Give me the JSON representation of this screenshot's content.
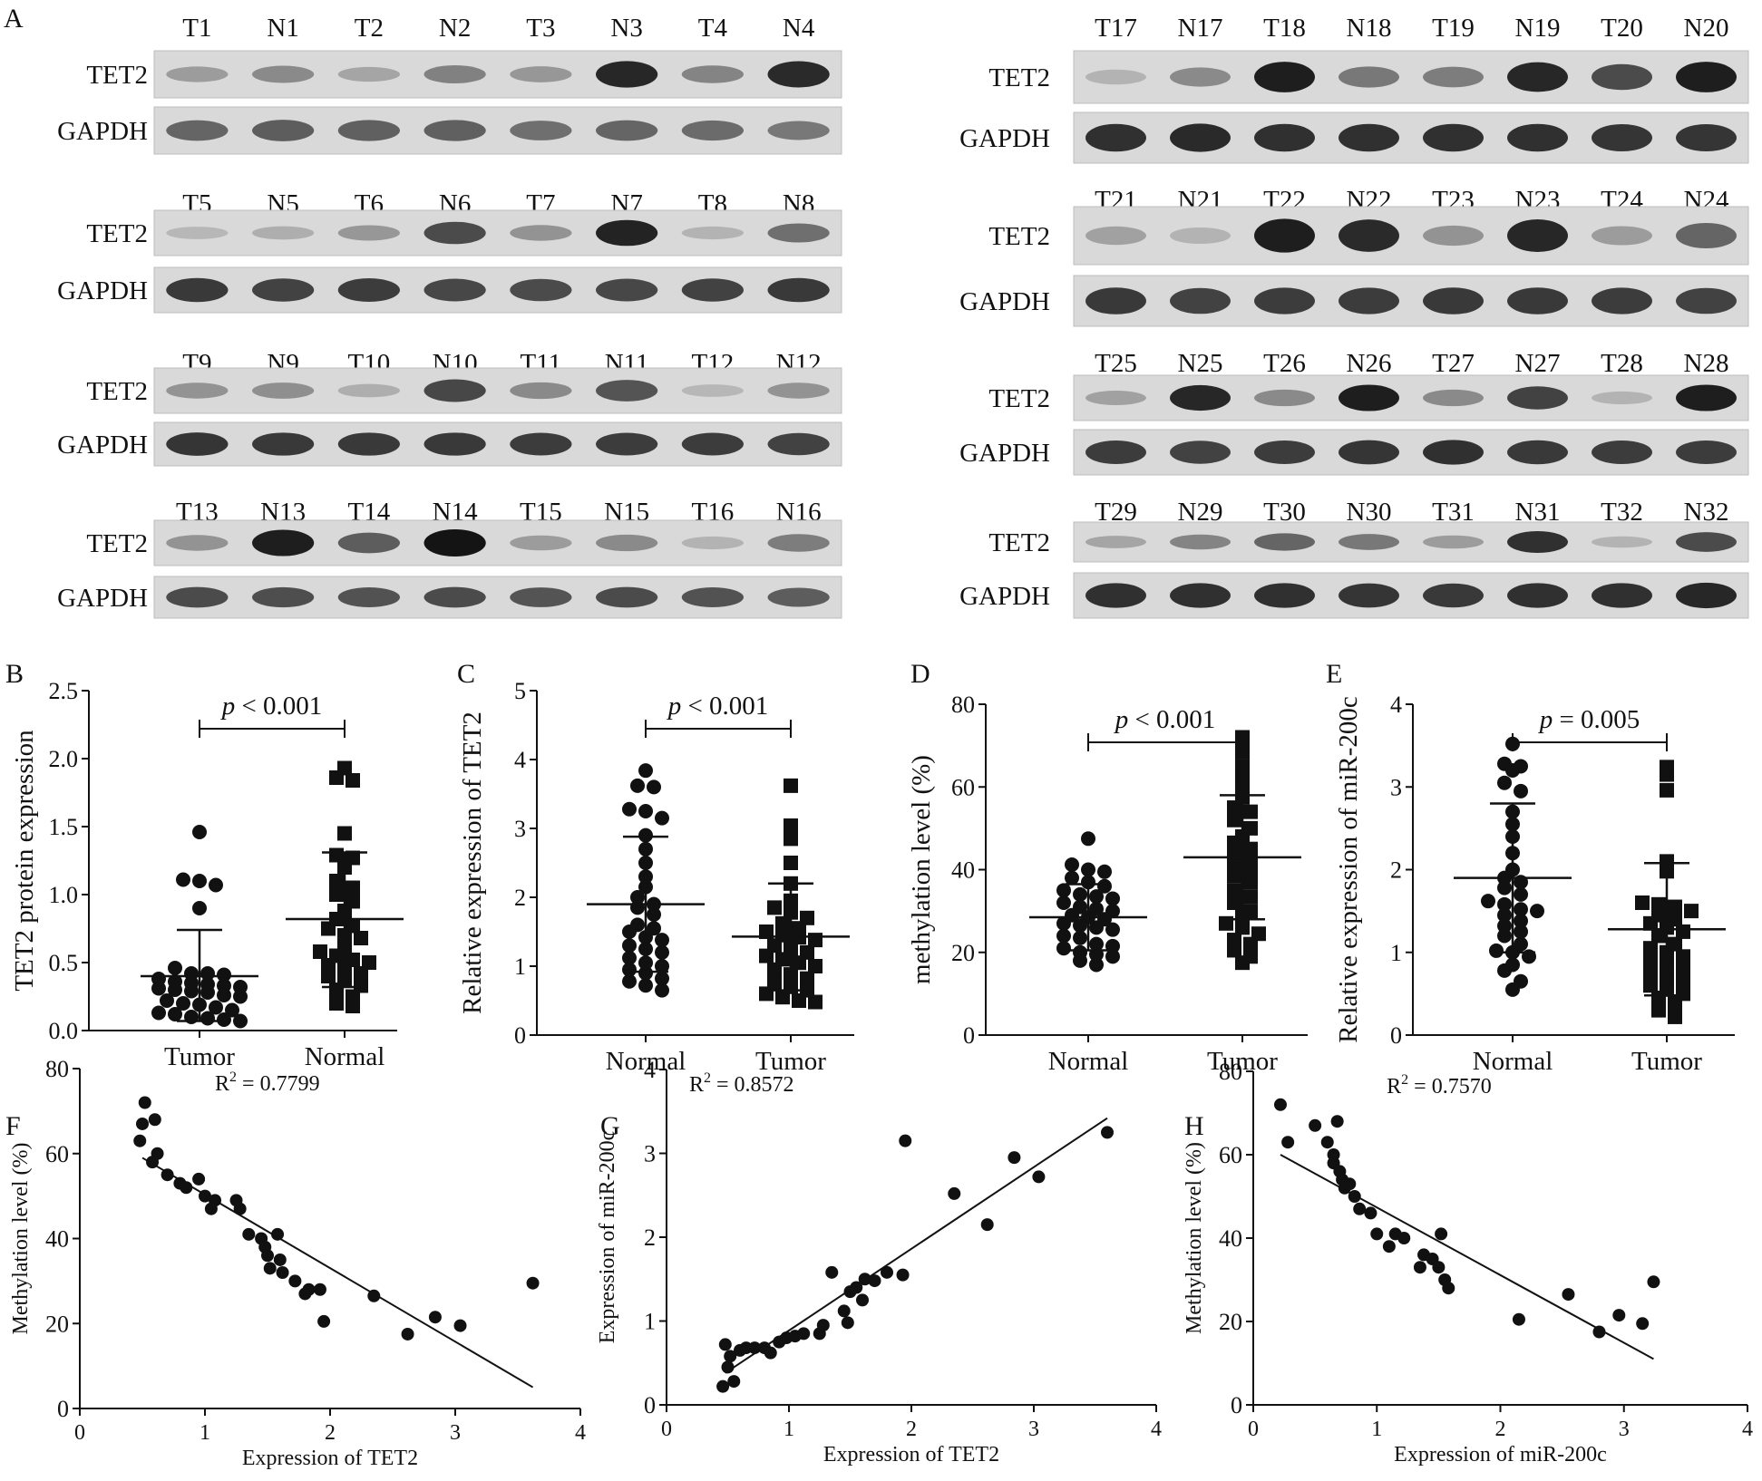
{
  "panel_letters": [
    "A",
    "B",
    "C",
    "D",
    "E",
    "F",
    "G",
    "H"
  ],
  "blot": {
    "protein_labels": [
      "TET2",
      "GAPDH"
    ],
    "blocks": [
      {
        "lanes": [
          "T1",
          "N1",
          "T2",
          "N2",
          "T3",
          "N3",
          "T4",
          "N4"
        ],
        "tet2": [
          0.25,
          0.35,
          0.2,
          0.4,
          0.28,
          0.9,
          0.38,
          0.88
        ],
        "gapdh": [
          0.55,
          0.6,
          0.58,
          0.58,
          0.5,
          0.55,
          0.52,
          0.45
        ]
      },
      {
        "lanes": [
          "T5",
          "N5",
          "T6",
          "N6",
          "T7",
          "N7",
          "T8",
          "N8"
        ],
        "tet2": [
          0.1,
          0.15,
          0.28,
          0.7,
          0.3,
          0.92,
          0.12,
          0.5
        ],
        "gapdh": [
          0.8,
          0.75,
          0.78,
          0.72,
          0.7,
          0.72,
          0.75,
          0.8
        ]
      },
      {
        "lanes": [
          "T9",
          "N9",
          "T10",
          "N10",
          "T11",
          "N11",
          "T12",
          "N12"
        ],
        "tet2": [
          0.3,
          0.32,
          0.15,
          0.72,
          0.35,
          0.65,
          0.1,
          0.3
        ],
        "gapdh": [
          0.82,
          0.8,
          0.8,
          0.8,
          0.78,
          0.78,
          0.78,
          0.75
        ]
      },
      {
        "lanes": [
          "T13",
          "N13",
          "T14",
          "N14",
          "T15",
          "N15",
          "T16",
          "N16"
        ],
        "tet2": [
          0.3,
          0.95,
          0.6,
          1.0,
          0.25,
          0.35,
          0.12,
          0.42
        ],
        "gapdh": [
          0.7,
          0.68,
          0.66,
          0.7,
          0.65,
          0.7,
          0.66,
          0.6
        ]
      },
      {
        "lanes": [
          "T17",
          "N17",
          "T18",
          "N18",
          "T19",
          "N19",
          "T20",
          "N20"
        ],
        "tet2": [
          0.12,
          0.35,
          0.95,
          0.45,
          0.42,
          0.9,
          0.7,
          0.95
        ],
        "gapdh": [
          0.85,
          0.88,
          0.85,
          0.85,
          0.85,
          0.85,
          0.82,
          0.82
        ]
      },
      {
        "lanes": [
          "T21",
          "N21",
          "T22",
          "N22",
          "T23",
          "N23",
          "T24",
          "N24"
        ],
        "tet2": [
          0.22,
          0.12,
          0.95,
          0.88,
          0.3,
          0.9,
          0.25,
          0.55
        ],
        "gapdh": [
          0.8,
          0.75,
          0.78,
          0.78,
          0.8,
          0.8,
          0.78,
          0.75
        ]
      },
      {
        "lanes": [
          "T25",
          "N25",
          "T26",
          "N26",
          "T27",
          "N27",
          "T28",
          "N28"
        ],
        "tet2": [
          0.22,
          0.9,
          0.35,
          0.95,
          0.35,
          0.75,
          0.12,
          0.95
        ],
        "gapdh": [
          0.78,
          0.75,
          0.78,
          0.82,
          0.85,
          0.8,
          0.78,
          0.78
        ]
      },
      {
        "lanes": [
          "T29",
          "N29",
          "T30",
          "N30",
          "T31",
          "N31",
          "T32",
          "N32"
        ],
        "tet2": [
          0.2,
          0.38,
          0.55,
          0.45,
          0.25,
          0.85,
          0.12,
          0.7
        ],
        "gapdh": [
          0.85,
          0.85,
          0.85,
          0.82,
          0.8,
          0.85,
          0.85,
          0.9
        ]
      }
    ]
  },
  "chart_data": [
    {
      "panel": "B",
      "type": "scatter",
      "ylabel": "TET2 protein expression",
      "categories": [
        "Tumor",
        "Normal"
      ],
      "ylim": [
        0,
        2.5
      ],
      "yticks": [
        "0.0",
        "0.5",
        "1.0",
        "1.5",
        "2.0",
        "2.5"
      ],
      "pvalue": "< 0.001",
      "significance_pair": [
        "Tumor",
        "Normal"
      ],
      "groups": [
        {
          "name": "Tumor",
          "marker": "circle",
          "mean": 0.4,
          "sd_low": 0.07,
          "sd_high": 0.74,
          "values": [
            1.46,
            1.11,
            1.1,
            1.07,
            0.9,
            0.46,
            0.42,
            0.42,
            0.41,
            0.38,
            0.36,
            0.35,
            0.34,
            0.33,
            0.32,
            0.31,
            0.3,
            0.29,
            0.28,
            0.26,
            0.25,
            0.22,
            0.2,
            0.19,
            0.17,
            0.15,
            0.13,
            0.12,
            0.1,
            0.09,
            0.08,
            0.07
          ]
        },
        {
          "name": "Normal",
          "marker": "square",
          "mean": 0.82,
          "sd_low": 0.32,
          "sd_high": 1.31,
          "values": [
            1.93,
            1.86,
            1.84,
            1.45,
            1.29,
            1.27,
            1.2,
            1.1,
            1.05,
            1.0,
            0.95,
            0.88,
            0.82,
            0.77,
            0.75,
            0.7,
            0.68,
            0.6,
            0.58,
            0.55,
            0.52,
            0.5,
            0.48,
            0.45,
            0.42,
            0.4,
            0.37,
            0.33,
            0.3,
            0.25,
            0.2,
            0.18
          ]
        }
      ]
    },
    {
      "panel": "C",
      "type": "scatter",
      "ylabel": "Relative expression of TET2",
      "categories": [
        "Normal",
        "Tumor"
      ],
      "ylim": [
        0,
        5
      ],
      "yticks": [
        "0",
        "1",
        "2",
        "3",
        "4",
        "5"
      ],
      "pvalue": "< 0.001",
      "significance_pair": [
        "Normal",
        "Tumor"
      ],
      "groups": [
        {
          "name": "Normal",
          "marker": "circle",
          "mean": 1.9,
          "sd_low": 0.92,
          "sd_high": 2.88,
          "values": [
            3.84,
            3.62,
            3.6,
            3.28,
            3.25,
            3.15,
            2.9,
            2.7,
            2.5,
            2.3,
            2.15,
            2.0,
            1.9,
            1.85,
            1.75,
            1.6,
            1.55,
            1.5,
            1.42,
            1.38,
            1.3,
            1.25,
            1.2,
            1.12,
            1.05,
            1.0,
            0.95,
            0.9,
            0.82,
            0.78,
            0.72,
            0.65
          ]
        },
        {
          "name": "Tumor",
          "marker": "square",
          "mean": 1.43,
          "sd_low": 0.65,
          "sd_high": 2.2,
          "values": [
            3.62,
            3.04,
            2.85,
            2.5,
            2.2,
            1.95,
            1.85,
            1.78,
            1.7,
            1.62,
            1.55,
            1.5,
            1.45,
            1.42,
            1.38,
            1.3,
            1.25,
            1.2,
            1.15,
            1.1,
            1.05,
            1.0,
            0.95,
            0.88,
            0.82,
            0.75,
            0.7,
            0.65,
            0.6,
            0.55,
            0.5,
            0.48
          ]
        }
      ]
    },
    {
      "panel": "D",
      "type": "scatter",
      "ylabel": "methylation level (%)",
      "categories": [
        "Normal",
        "Tumor"
      ],
      "ylim": [
        0,
        80
      ],
      "yticks": [
        "0",
        "20",
        "40",
        "60",
        "80"
      ],
      "pvalue": "< 0.001",
      "significance_pair": [
        "Normal",
        "Tumor"
      ],
      "groups": [
        {
          "name": "Normal",
          "marker": "circle",
          "mean": 28.5,
          "sd_low": 20.5,
          "sd_high": 36.5,
          "values": [
            47.5,
            41.2,
            40,
            39.5,
            38,
            37,
            36,
            35,
            34,
            33.5,
            33,
            32,
            31,
            30.5,
            30,
            29,
            28.5,
            28,
            27,
            26.5,
            26,
            25.5,
            24,
            23.5,
            22,
            21.5,
            21,
            20,
            19.5,
            19,
            18,
            17
          ]
        },
        {
          "name": "Tumor",
          "marker": "square",
          "mean": 43,
          "sd_low": 28,
          "sd_high": 58,
          "values": [
            72,
            68.5,
            65,
            63,
            60,
            57.5,
            55,
            54,
            52,
            50,
            48,
            46.5,
            45,
            43.5,
            42,
            41,
            40,
            38.5,
            37,
            35,
            33.5,
            32,
            30,
            29,
            27,
            26,
            24.5,
            23,
            22,
            20.5,
            19,
            17.5
          ]
        }
      ]
    },
    {
      "panel": "E",
      "type": "scatter",
      "ylabel": "Relative expression of miR-200c",
      "categories": [
        "Normal",
        "Tumor"
      ],
      "ylim": [
        0,
        4
      ],
      "yticks": [
        "0",
        "1",
        "2",
        "3",
        "4"
      ],
      "pvalue": "= 0.005",
      "significance_pair": [
        "Normal",
        "Tumor"
      ],
      "groups": [
        {
          "name": "Normal",
          "marker": "circle",
          "mean": 1.9,
          "sd_low": 1.0,
          "sd_high": 2.8,
          "values": [
            3.52,
            3.28,
            3.25,
            3.2,
            3.05,
            2.95,
            2.7,
            2.55,
            2.4,
            2.2,
            2.0,
            1.9,
            1.85,
            1.78,
            1.7,
            1.62,
            1.58,
            1.52,
            1.5,
            1.45,
            1.38,
            1.32,
            1.25,
            1.2,
            1.1,
            1.02,
            1.0,
            0.95,
            0.85,
            0.78,
            0.65,
            0.55
          ]
        },
        {
          "name": "Tumor",
          "marker": "square",
          "mean": 1.28,
          "sd_low": 0.48,
          "sd_high": 2.08,
          "values": [
            3.24,
            3.15,
            2.96,
            2.1,
            1.98,
            1.6,
            1.58,
            1.55,
            1.5,
            1.45,
            1.4,
            1.35,
            1.3,
            1.25,
            1.2,
            1.1,
            1.05,
            1.0,
            0.95,
            0.9,
            0.85,
            0.8,
            0.75,
            0.7,
            0.65,
            0.6,
            0.55,
            0.5,
            0.45,
            0.38,
            0.3,
            0.22
          ]
        }
      ]
    },
    {
      "panel": "F",
      "type": "scatter",
      "xlabel": "Expression of TET2",
      "ylabel": "Methylation level (%)",
      "xlim": [
        0,
        4
      ],
      "ylim": [
        0,
        80
      ],
      "xticks": [
        "0",
        "1",
        "2",
        "3",
        "4"
      ],
      "yticks": [
        "0",
        "20",
        "40",
        "60",
        "80"
      ],
      "r2_prefix": "R",
      "r2_value": " = 0.7799",
      "fit": [
        [
          0.5,
          59
        ],
        [
          3.62,
          5
        ]
      ],
      "points": [
        [
          0.48,
          63
        ],
        [
          0.52,
          72
        ],
        [
          0.5,
          67
        ],
        [
          0.6,
          68
        ],
        [
          0.58,
          58
        ],
        [
          0.62,
          60
        ],
        [
          0.7,
          55
        ],
        [
          0.8,
          53
        ],
        [
          0.85,
          52
        ],
        [
          0.95,
          54
        ],
        [
          1.0,
          50
        ],
        [
          1.08,
          49
        ],
        [
          1.05,
          47
        ],
        [
          1.25,
          49
        ],
        [
          1.28,
          47
        ],
        [
          1.35,
          41
        ],
        [
          1.45,
          40
        ],
        [
          1.48,
          38
        ],
        [
          1.5,
          36
        ],
        [
          1.52,
          33
        ],
        [
          1.58,
          41
        ],
        [
          1.6,
          35
        ],
        [
          1.62,
          32
        ],
        [
          1.72,
          30
        ],
        [
          1.8,
          27
        ],
        [
          1.83,
          28
        ],
        [
          1.92,
          28
        ],
        [
          1.95,
          20.5
        ],
        [
          2.35,
          26.5
        ],
        [
          2.62,
          17.5
        ],
        [
          2.84,
          21.5
        ],
        [
          3.04,
          19.5
        ],
        [
          3.62,
          29.5
        ]
      ]
    },
    {
      "panel": "G",
      "type": "scatter",
      "xlabel": "Expression of TET2",
      "ylabel": "Expression of miR-200c",
      "xlim": [
        0,
        4
      ],
      "ylim": [
        0,
        4
      ],
      "xticks": [
        "0",
        "1",
        "2",
        "3",
        "4"
      ],
      "yticks": [
        "0",
        "1",
        "2",
        "3",
        "4"
      ],
      "r2_prefix": "R",
      "r2_value": " = 0.8572",
      "fit": [
        [
          0.48,
          0.38
        ],
        [
          3.6,
          3.42
        ]
      ],
      "points": [
        [
          0.46,
          0.22
        ],
        [
          0.48,
          0.72
        ],
        [
          0.5,
          0.45
        ],
        [
          0.52,
          0.58
        ],
        [
          0.55,
          0.28
        ],
        [
          0.6,
          0.65
        ],
        [
          0.65,
          0.68
        ],
        [
          0.72,
          0.68
        ],
        [
          0.8,
          0.68
        ],
        [
          0.85,
          0.62
        ],
        [
          0.92,
          0.75
        ],
        [
          0.98,
          0.8
        ],
        [
          1.05,
          0.82
        ],
        [
          1.12,
          0.85
        ],
        [
          1.25,
          0.85
        ],
        [
          1.28,
          0.95
        ],
        [
          1.35,
          1.58
        ],
        [
          1.45,
          1.12
        ],
        [
          1.48,
          0.98
        ],
        [
          1.5,
          1.35
        ],
        [
          1.55,
          1.4
        ],
        [
          1.6,
          1.25
        ],
        [
          1.62,
          1.5
        ],
        [
          1.7,
          1.48
        ],
        [
          1.8,
          1.58
        ],
        [
          1.93,
          1.55
        ],
        [
          1.95,
          3.15
        ],
        [
          2.35,
          2.52
        ],
        [
          2.62,
          2.15
        ],
        [
          2.84,
          2.95
        ],
        [
          3.04,
          2.72
        ],
        [
          3.6,
          3.25
        ]
      ]
    },
    {
      "panel": "H",
      "type": "scatter",
      "xlabel": "Expression of miR-200c",
      "ylabel": "Methylation level (%)",
      "xlim": [
        0,
        4
      ],
      "ylim": [
        0,
        80
      ],
      "xticks": [
        "0",
        "1",
        "2",
        "3",
        "4"
      ],
      "yticks": [
        "0",
        "20",
        "40",
        "60",
        "80"
      ],
      "r2_prefix": "R",
      "r2_value": " = 0.7570",
      "fit": [
        [
          0.22,
          60
        ],
        [
          3.24,
          11
        ]
      ],
      "points": [
        [
          0.22,
          72
        ],
        [
          0.28,
          63
        ],
        [
          0.5,
          67
        ],
        [
          0.6,
          63
        ],
        [
          0.65,
          58
        ],
        [
          0.68,
          68
        ],
        [
          0.65,
          60
        ],
        [
          0.7,
          56
        ],
        [
          0.72,
          54
        ],
        [
          0.74,
          52
        ],
        [
          0.78,
          53
        ],
        [
          0.82,
          50
        ],
        [
          0.86,
          47
        ],
        [
          0.95,
          46
        ],
        [
          1.0,
          41
        ],
        [
          1.1,
          38
        ],
        [
          1.15,
          41
        ],
        [
          1.22,
          40
        ],
        [
          1.35,
          33
        ],
        [
          1.38,
          36
        ],
        [
          1.45,
          35
        ],
        [
          1.5,
          33
        ],
        [
          1.52,
          41
        ],
        [
          1.55,
          30
        ],
        [
          1.58,
          28
        ],
        [
          2.15,
          20.5
        ],
        [
          2.55,
          26.5
        ],
        [
          2.8,
          17.5
        ],
        [
          2.96,
          21.5
        ],
        [
          3.15,
          19.5
        ],
        [
          3.24,
          29.5
        ]
      ]
    }
  ]
}
